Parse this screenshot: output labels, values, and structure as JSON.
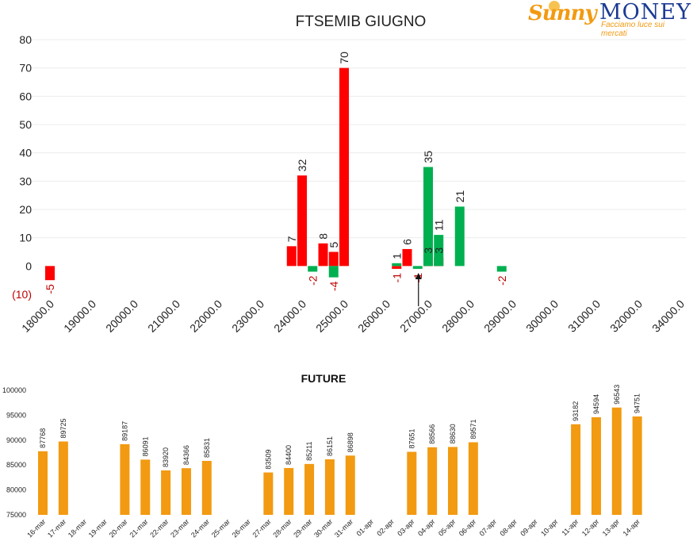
{
  "logo": {
    "brand_left": "Sunny",
    "brand_right": "MONEY",
    "tagline": "Facciamo luce sui mercati"
  },
  "colors": {
    "red": "#ff0000",
    "green": "#00b050",
    "orange": "#f29a11",
    "grid": "#ececec",
    "neg_label": "#c00000"
  },
  "chart_data": [
    {
      "type": "bar",
      "title": "FTSEMIB GIUGNO",
      "x_ticks": [
        "18000.0",
        "19000.0",
        "20000.0",
        "21000.0",
        "22000.0",
        "23000.0",
        "24000.0",
        "25000.0",
        "26000.0",
        "27000.0",
        "28000.0",
        "29000.0",
        "30000.0",
        "31000.0",
        "32000.0",
        "34000.0"
      ],
      "y_ticks": [
        "80",
        "70",
        "60",
        "50",
        "40",
        "30",
        "20",
        "10",
        "0",
        "(10)"
      ],
      "ylim": [
        -10,
        80
      ],
      "grid": true,
      "series": [
        {
          "color": "red",
          "points": [
            {
              "x": 18000,
              "y": -5,
              "label": "-5"
            },
            {
              "x": 23750,
              "y": 7,
              "label": "7"
            },
            {
              "x": 24000,
              "y": 32,
              "label": "32"
            },
            {
              "x": 24500,
              "y": 8,
              "label": "8"
            },
            {
              "x": 24750,
              "y": 5,
              "label": "5"
            },
            {
              "x": 25000,
              "y": 70,
              "label": "70"
            },
            {
              "x": 26250,
              "y": -1,
              "label": "-1"
            },
            {
              "x": 26500,
              "y": 6,
              "label": "6"
            },
            {
              "x": 27000,
              "y": 3,
              "label": "3"
            },
            {
              "x": 27250,
              "y": 3,
              "label": "3"
            }
          ]
        },
        {
          "color": "green",
          "points": [
            {
              "x": 24250,
              "y": -2,
              "label": "-2"
            },
            {
              "x": 24750,
              "y": -4,
              "label": "-4"
            },
            {
              "x": 26250,
              "y": 1,
              "label": "1"
            },
            {
              "x": 26750,
              "y": -1,
              "label": "-1"
            },
            {
              "x": 27000,
              "y": 35,
              "label": "35"
            },
            {
              "x": 27250,
              "y": 11,
              "label": "11"
            },
            {
              "x": 27750,
              "y": 21,
              "label": "21"
            },
            {
              "x": 28750,
              "y": -2,
              "label": "-2"
            }
          ]
        }
      ],
      "marker_x": 26750
    },
    {
      "type": "bar",
      "title": "FUTURE",
      "color": "orange",
      "ylim": [
        75000,
        100000
      ],
      "y_ticks": [
        "100000",
        "95000",
        "90000",
        "85000",
        "80000",
        "75000"
      ],
      "grid": false,
      "categories": [
        "16-mar",
        "17-mar",
        "18-mar",
        "19-mar",
        "20-mar",
        "21-mar",
        "22-mar",
        "23-mar",
        "24-mar",
        "25-mar",
        "26-mar",
        "27-mar",
        "28-mar",
        "29-mar",
        "30-mar",
        "31-mar",
        "01-apr",
        "02-apr",
        "03-apr",
        "04-apr",
        "05-apr",
        "06-apr",
        "07-apr",
        "08-apr",
        "09-apr",
        "10-apr",
        "11-apr",
        "12-apr",
        "13-apr",
        "14-apr"
      ],
      "values": [
        87768,
        89725,
        null,
        null,
        89187,
        86091,
        83920,
        84366,
        85831,
        null,
        null,
        83509,
        84400,
        85211,
        86151,
        86898,
        null,
        null,
        87651,
        88566,
        88630,
        89571,
        null,
        null,
        null,
        null,
        93182,
        94594,
        96543,
        94751
      ]
    }
  ]
}
